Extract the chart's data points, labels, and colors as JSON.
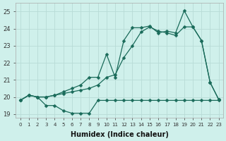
{
  "xlabel": "Humidex (Indice chaleur)",
  "bg_color": "#cff0eb",
  "grid_color": "#b8dbd6",
  "line_color": "#1a6b5a",
  "xlim": [
    -0.5,
    23.5
  ],
  "ylim": [
    18.8,
    25.5
  ],
  "yticks": [
    19,
    20,
    21,
    22,
    23,
    24,
    25
  ],
  "xticks": [
    0,
    1,
    2,
    3,
    4,
    5,
    6,
    7,
    8,
    9,
    10,
    11,
    12,
    13,
    14,
    15,
    16,
    17,
    18,
    19,
    20,
    21,
    22,
    23
  ],
  "line1_x": [
    0,
    1,
    2,
    3,
    4,
    5,
    6,
    7,
    8,
    9,
    10,
    11,
    12,
    13,
    14,
    15,
    16,
    17,
    18,
    19,
    20,
    21,
    22,
    23
  ],
  "line1_y": [
    19.8,
    20.1,
    20.0,
    19.5,
    19.5,
    19.2,
    19.05,
    19.05,
    19.05,
    19.8,
    19.8,
    19.8,
    19.8,
    19.8,
    19.8,
    19.8,
    19.8,
    19.8,
    19.8,
    19.8,
    19.8,
    19.8,
    19.8,
    19.8
  ],
  "line2_x": [
    0,
    1,
    2,
    3,
    4,
    5,
    6,
    7,
    8,
    9,
    10,
    11,
    12,
    13,
    14,
    15,
    16,
    17,
    18,
    19,
    20,
    21,
    22,
    23
  ],
  "line2_y": [
    19.8,
    20.1,
    20.0,
    20.0,
    20.1,
    20.2,
    20.3,
    20.4,
    20.5,
    20.7,
    21.15,
    21.3,
    22.3,
    23.0,
    23.8,
    24.1,
    23.85,
    23.75,
    23.6,
    24.1,
    24.1,
    23.3,
    20.85,
    19.85
  ],
  "line3_x": [
    0,
    1,
    2,
    3,
    4,
    5,
    6,
    7,
    8,
    9,
    10,
    11,
    12,
    13,
    14,
    15,
    16,
    17,
    18,
    19,
    20,
    21,
    22,
    23
  ],
  "line3_y": [
    19.8,
    20.1,
    20.0,
    20.0,
    20.1,
    20.3,
    20.5,
    20.7,
    21.15,
    21.15,
    22.5,
    21.15,
    23.3,
    24.05,
    24.05,
    24.15,
    23.75,
    23.85,
    23.75,
    25.05,
    24.1,
    23.3,
    20.85,
    19.85
  ]
}
